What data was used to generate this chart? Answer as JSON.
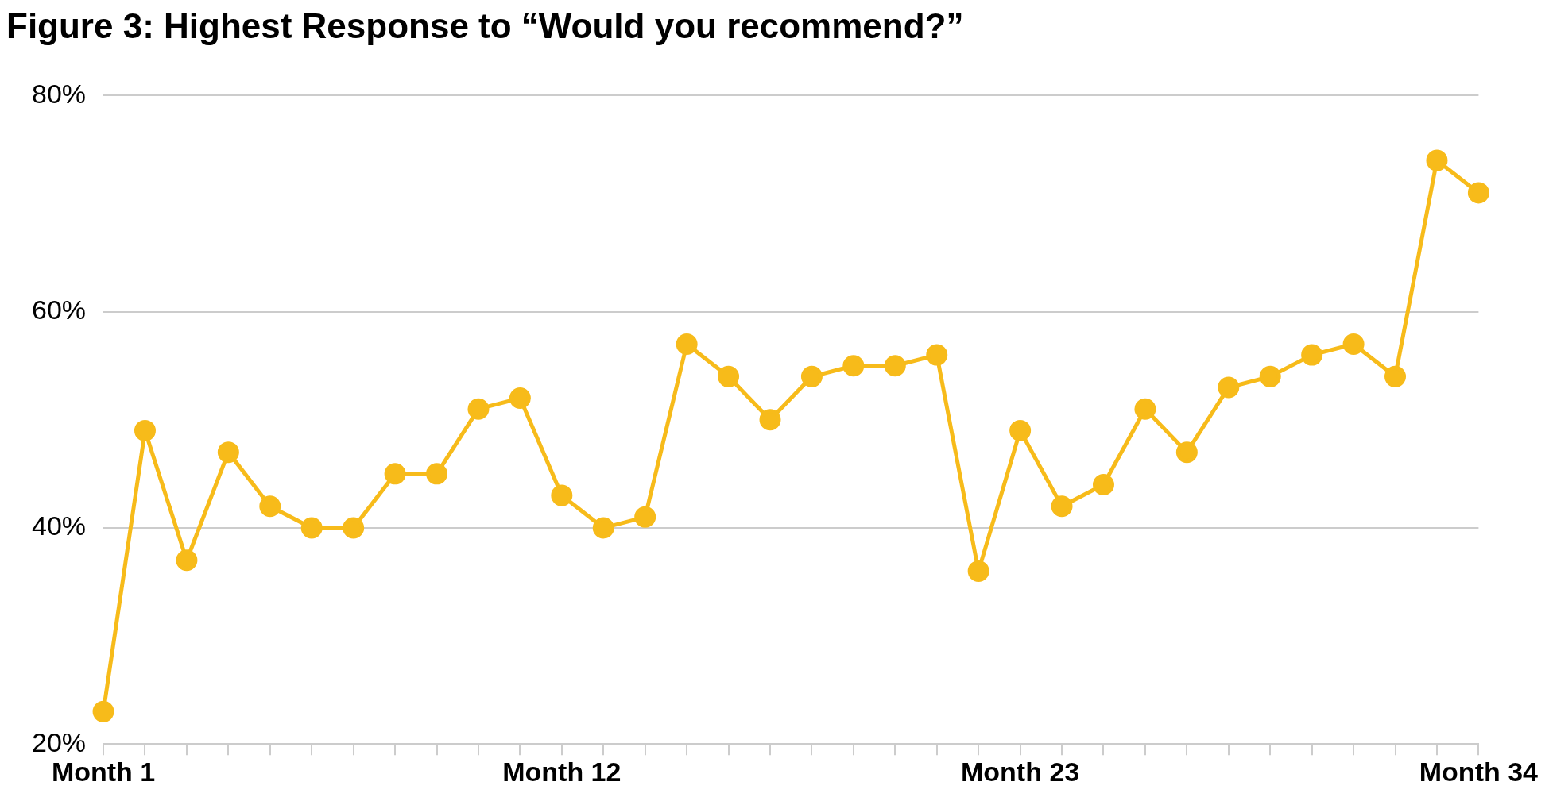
{
  "chart_data": {
    "type": "line",
    "title": "Figure 3: Highest Response to “Would you recommend?”",
    "categories": [
      "Month 1",
      null,
      null,
      null,
      null,
      null,
      null,
      null,
      null,
      null,
      null,
      "Month 12",
      null,
      null,
      null,
      null,
      null,
      null,
      null,
      null,
      null,
      null,
      "Month 23",
      null,
      null,
      null,
      null,
      null,
      null,
      null,
      null,
      null,
      null,
      "Month 34"
    ],
    "series": [
      {
        "color": "#f7bb1a",
        "values": [
          23,
          49,
          37,
          47,
          42,
          40,
          40,
          45,
          45,
          51,
          52,
          43,
          40,
          41,
          57,
          54,
          50,
          54,
          55,
          55,
          56,
          36,
          49,
          42,
          44,
          51,
          47,
          53,
          54,
          56,
          57,
          54,
          74,
          71
        ]
      }
    ],
    "ylim": [
      20,
      80
    ],
    "yticks": [
      {
        "value": 20,
        "label": "20%"
      },
      {
        "value": 40,
        "label": "40%"
      },
      {
        "value": 60,
        "label": "60%"
      },
      {
        "value": 80,
        "label": "80%"
      }
    ],
    "grid": "y",
    "legend": false,
    "marker": "circle",
    "line_style": "solid"
  }
}
